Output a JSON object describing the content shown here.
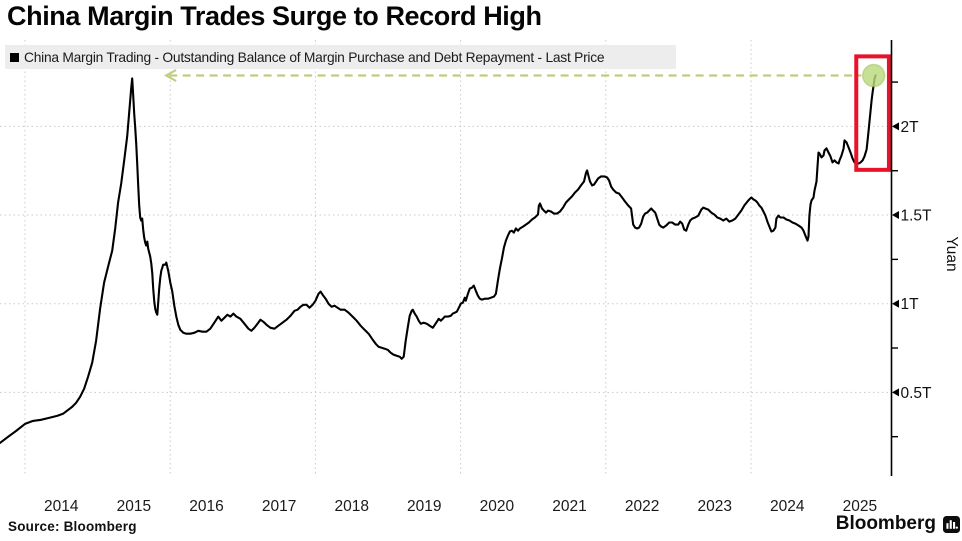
{
  "page": {
    "title": "China Margin Trades Surge to Record High",
    "source": "Source: Bloomberg",
    "brand": "Bloomberg"
  },
  "legend": {
    "label": "China Margin Trading - Outstanding Balance of Margin Purchase and Debt Repayment - Last Price",
    "swatch_color": "#000000",
    "background": "#ededed"
  },
  "chart_data": {
    "type": "line",
    "title": "China Margin Trades Surge to Record High",
    "series_name": "China Margin Trading - Outstanding Balance of Margin Purchase and Debt Repayment - Last Price",
    "xlabel": "",
    "ylabel": "Yuan",
    "unit": "trillion yuan",
    "xlim": [
      2013.65,
      2025.95
    ],
    "ylim": [
      0,
      2.47
    ],
    "grid": "dotted",
    "legend_position": "top-left",
    "x_ticks": [
      2014,
      2015,
      2016,
      2017,
      2018,
      2019,
      2020,
      2021,
      2022,
      2023,
      2024,
      2025
    ],
    "x_tick_labels": [
      "2014",
      "2015",
      "2016",
      "2017",
      "2018",
      "2019",
      "2020",
      "2021",
      "2022",
      "2023",
      "2024",
      "2025"
    ],
    "x_gridline_years": [
      2014,
      2016,
      2018,
      2020,
      2022,
      2024
    ],
    "y_ticks": [
      {
        "value": 0.5,
        "label": "0.5T"
      },
      {
        "value": 1.0,
        "label": "1T"
      },
      {
        "value": 1.5,
        "label": "1.5T"
      },
      {
        "value": 2.0,
        "label": "2T"
      }
    ],
    "y_minor_ticks": [
      0.25,
      0.75,
      1.25,
      1.75,
      2.25
    ],
    "colors": {
      "line": "#000000",
      "grid": "#c9c9c9",
      "axis": "#000000"
    },
    "annotations": {
      "record_level_line": {
        "value": 2.287,
        "from_year": 2015.93,
        "to_year": 2025.52,
        "style": "dashed",
        "color": "#c1ca80",
        "arrowhead": "left"
      },
      "record_marker": {
        "year": 2025.69,
        "value": 2.287,
        "color": "#b9d97f",
        "edge_color": "#9fc360"
      },
      "highlight_box": {
        "year_start": 2025.45,
        "year_end": 2025.9,
        "value_low": 1.755,
        "value_high": 2.395,
        "color": "#e8132a"
      }
    },
    "points": [
      [
        2013.655,
        0.215
      ],
      [
        2013.765,
        0.249
      ],
      [
        2013.876,
        0.282
      ],
      [
        2014.0,
        0.322
      ],
      [
        2014.11,
        0.339
      ],
      [
        2014.221,
        0.345
      ],
      [
        2014.331,
        0.356
      ],
      [
        2014.442,
        0.367
      ],
      [
        2014.524,
        0.379
      ],
      [
        2014.593,
        0.401
      ],
      [
        2014.649,
        0.418
      ],
      [
        2014.704,
        0.441
      ],
      [
        2014.759,
        0.475
      ],
      [
        2014.814,
        0.52
      ],
      [
        2014.869,
        0.588
      ],
      [
        2014.925,
        0.667
      ],
      [
        2014.98,
        0.791
      ],
      [
        2015.035,
        0.972
      ],
      [
        2015.09,
        1.119
      ],
      [
        2015.145,
        1.209
      ],
      [
        2015.201,
        1.299
      ],
      [
        2015.242,
        1.424
      ],
      [
        2015.283,
        1.571
      ],
      [
        2015.325,
        1.678
      ],
      [
        2015.366,
        1.808
      ],
      [
        2015.408,
        1.944
      ],
      [
        2015.435,
        2.079
      ],
      [
        2015.463,
        2.215
      ],
      [
        2015.477,
        2.271
      ],
      [
        2015.49,
        2.175
      ],
      [
        2015.504,
        2.073
      ],
      [
        2015.518,
        1.994
      ],
      [
        2015.532,
        1.904
      ],
      [
        2015.546,
        1.791
      ],
      [
        2015.559,
        1.667
      ],
      [
        2015.573,
        1.554
      ],
      [
        2015.587,
        1.486
      ],
      [
        2015.601,
        1.469
      ],
      [
        2015.615,
        1.48
      ],
      [
        2015.628,
        1.418
      ],
      [
        2015.642,
        1.373
      ],
      [
        2015.656,
        1.345
      ],
      [
        2015.67,
        1.328
      ],
      [
        2015.684,
        1.35
      ],
      [
        2015.697,
        1.311
      ],
      [
        2015.711,
        1.288
      ],
      [
        2015.725,
        1.266
      ],
      [
        2015.739,
        1.226
      ],
      [
        2015.753,
        1.169
      ],
      [
        2015.766,
        1.085
      ],
      [
        2015.78,
        1.017
      ],
      [
        2015.794,
        0.972
      ],
      [
        2015.808,
        0.949
      ],
      [
        2015.822,
        0.938
      ],
      [
        2015.835,
        1.006
      ],
      [
        2015.849,
        1.085
      ],
      [
        2015.863,
        1.147
      ],
      [
        2015.877,
        1.186
      ],
      [
        2015.891,
        1.203
      ],
      [
        2015.904,
        1.22
      ],
      [
        2015.932,
        1.22
      ],
      [
        2015.946,
        1.232
      ],
      [
        2015.973,
        1.186
      ],
      [
        2016.001,
        1.119
      ],
      [
        2016.029,
        1.068
      ],
      [
        2016.056,
        0.989
      ],
      [
        2016.084,
        0.927
      ],
      [
        2016.111,
        0.881
      ],
      [
        2016.139,
        0.853
      ],
      [
        2016.18,
        0.836
      ],
      [
        2016.222,
        0.831
      ],
      [
        2016.277,
        0.831
      ],
      [
        2016.332,
        0.836
      ],
      [
        2016.387,
        0.847
      ],
      [
        2016.443,
        0.842
      ],
      [
        2016.498,
        0.842
      ],
      [
        2016.553,
        0.859
      ],
      [
        2016.608,
        0.893
      ],
      [
        2016.663,
        0.927
      ],
      [
        2016.705,
        0.904
      ],
      [
        2016.746,
        0.921
      ],
      [
        2016.788,
        0.938
      ],
      [
        2016.829,
        0.927
      ],
      [
        2016.87,
        0.944
      ],
      [
        2016.912,
        0.927
      ],
      [
        2016.967,
        0.915
      ],
      [
        2017.022,
        0.887
      ],
      [
        2017.077,
        0.859
      ],
      [
        2017.119,
        0.847
      ],
      [
        2017.16,
        0.864
      ],
      [
        2017.202,
        0.887
      ],
      [
        2017.243,
        0.91
      ],
      [
        2017.284,
        0.898
      ],
      [
        2017.326,
        0.881
      ],
      [
        2017.381,
        0.864
      ],
      [
        2017.436,
        0.859
      ],
      [
        2017.491,
        0.876
      ],
      [
        2017.547,
        0.893
      ],
      [
        2017.602,
        0.91
      ],
      [
        2017.657,
        0.932
      ],
      [
        2017.712,
        0.96
      ],
      [
        2017.754,
        0.966
      ],
      [
        2017.795,
        0.983
      ],
      [
        2017.836,
        0.994
      ],
      [
        2017.878,
        0.994
      ],
      [
        2017.919,
        0.977
      ],
      [
        2017.961,
        0.994
      ],
      [
        2018.002,
        1.017
      ],
      [
        2018.043,
        1.056
      ],
      [
        2018.071,
        1.068
      ],
      [
        2018.099,
        1.051
      ],
      [
        2018.14,
        1.028
      ],
      [
        2018.181,
        1.0
      ],
      [
        2018.223,
        0.983
      ],
      [
        2018.264,
        0.989
      ],
      [
        2018.306,
        0.977
      ],
      [
        2018.347,
        0.966
      ],
      [
        2018.402,
        0.966
      ],
      [
        2018.457,
        0.949
      ],
      [
        2018.513,
        0.927
      ],
      [
        2018.568,
        0.904
      ],
      [
        2018.623,
        0.876
      ],
      [
        2018.678,
        0.853
      ],
      [
        2018.733,
        0.831
      ],
      [
        2018.789,
        0.797
      ],
      [
        2018.83,
        0.774
      ],
      [
        2018.871,
        0.757
      ],
      [
        2018.913,
        0.751
      ],
      [
        2018.954,
        0.746
      ],
      [
        2018.996,
        0.74
      ],
      [
        2019.037,
        0.723
      ],
      [
        2019.078,
        0.712
      ],
      [
        2019.12,
        0.706
      ],
      [
        2019.161,
        0.701
      ],
      [
        2019.189,
        0.689
      ],
      [
        2019.216,
        0.701
      ],
      [
        2019.244,
        0.791
      ],
      [
        2019.272,
        0.864
      ],
      [
        2019.299,
        0.932
      ],
      [
        2019.327,
        0.96
      ],
      [
        2019.341,
        0.966
      ],
      [
        2019.368,
        0.944
      ],
      [
        2019.396,
        0.927
      ],
      [
        2019.423,
        0.904
      ],
      [
        2019.451,
        0.887
      ],
      [
        2019.492,
        0.893
      ],
      [
        2019.534,
        0.887
      ],
      [
        2019.575,
        0.876
      ],
      [
        2019.617,
        0.864
      ],
      [
        2019.644,
        0.881
      ],
      [
        2019.672,
        0.898
      ],
      [
        2019.699,
        0.915
      ],
      [
        2019.727,
        0.904
      ],
      [
        2019.755,
        0.915
      ],
      [
        2019.782,
        0.927
      ],
      [
        2019.824,
        0.927
      ],
      [
        2019.865,
        0.932
      ],
      [
        2019.893,
        0.944
      ],
      [
        2019.92,
        0.949
      ],
      [
        2019.948,
        0.955
      ],
      [
        2019.975,
        0.977
      ],
      [
        2020.003,
        1.0
      ],
      [
        2020.031,
        1.006
      ],
      [
        2020.058,
        1.034
      ],
      [
        2020.072,
        1.017
      ],
      [
        2020.1,
        1.056
      ],
      [
        2020.127,
        1.085
      ],
      [
        2020.155,
        1.09
      ],
      [
        2020.182,
        1.102
      ],
      [
        2020.21,
        1.073
      ],
      [
        2020.238,
        1.045
      ],
      [
        2020.265,
        1.028
      ],
      [
        2020.293,
        1.023
      ],
      [
        2020.334,
        1.028
      ],
      [
        2020.376,
        1.028
      ],
      [
        2020.417,
        1.034
      ],
      [
        2020.458,
        1.04
      ],
      [
        2020.486,
        1.056
      ],
      [
        2020.514,
        1.13
      ],
      [
        2020.541,
        1.198
      ],
      [
        2020.569,
        1.254
      ],
      [
        2020.596,
        1.316
      ],
      [
        2020.624,
        1.356
      ],
      [
        2020.652,
        1.384
      ],
      [
        2020.679,
        1.407
      ],
      [
        2020.707,
        1.412
      ],
      [
        2020.734,
        1.401
      ],
      [
        2020.762,
        1.424
      ],
      [
        2020.79,
        1.412
      ],
      [
        2020.817,
        1.424
      ],
      [
        2020.859,
        1.435
      ],
      [
        2020.9,
        1.446
      ],
      [
        2020.941,
        1.458
      ],
      [
        2020.983,
        1.475
      ],
      [
        2021.024,
        1.486
      ],
      [
        2021.066,
        1.503
      ],
      [
        2021.079,
        1.554
      ],
      [
        2021.093,
        1.565
      ],
      [
        2021.121,
        1.537
      ],
      [
        2021.148,
        1.525
      ],
      [
        2021.176,
        1.514
      ],
      [
        2021.204,
        1.525
      ],
      [
        2021.245,
        1.52
      ],
      [
        2021.286,
        1.508
      ],
      [
        2021.328,
        1.508
      ],
      [
        2021.369,
        1.52
      ],
      [
        2021.411,
        1.542
      ],
      [
        2021.452,
        1.571
      ],
      [
        2021.493,
        1.588
      ],
      [
        2021.535,
        1.605
      ],
      [
        2021.576,
        1.627
      ],
      [
        2021.618,
        1.644
      ],
      [
        2021.659,
        1.667
      ],
      [
        2021.7,
        1.689
      ],
      [
        2021.728,
        1.74
      ],
      [
        2021.742,
        1.751
      ],
      [
        2021.756,
        1.729
      ],
      [
        2021.783,
        1.689
      ],
      [
        2021.811,
        1.667
      ],
      [
        2021.838,
        1.672
      ],
      [
        2021.866,
        1.689
      ],
      [
        2021.894,
        1.706
      ],
      [
        2021.935,
        1.718
      ],
      [
        2021.976,
        1.718
      ],
      [
        2022.018,
        1.712
      ],
      [
        2022.045,
        1.695
      ],
      [
        2022.073,
        1.661
      ],
      [
        2022.101,
        1.644
      ],
      [
        2022.142,
        1.627
      ],
      [
        2022.183,
        1.621
      ],
      [
        2022.225,
        1.599
      ],
      [
        2022.266,
        1.576
      ],
      [
        2022.308,
        1.554
      ],
      [
        2022.349,
        1.537
      ],
      [
        2022.377,
        1.446
      ],
      [
        2022.404,
        1.429
      ],
      [
        2022.432,
        1.424
      ],
      [
        2022.459,
        1.429
      ],
      [
        2022.487,
        1.452
      ],
      [
        2022.515,
        1.492
      ],
      [
        2022.542,
        1.508
      ],
      [
        2022.57,
        1.514
      ],
      [
        2022.597,
        1.525
      ],
      [
        2022.625,
        1.537
      ],
      [
        2022.653,
        1.525
      ],
      [
        2022.68,
        1.514
      ],
      [
        2022.708,
        1.48
      ],
      [
        2022.735,
        1.446
      ],
      [
        2022.763,
        1.435
      ],
      [
        2022.791,
        1.429
      ],
      [
        2022.832,
        1.441
      ],
      [
        2022.873,
        1.458
      ],
      [
        2022.915,
        1.458
      ],
      [
        2022.956,
        1.446
      ],
      [
        2022.998,
        1.446
      ],
      [
        2023.025,
        1.463
      ],
      [
        2023.053,
        1.452
      ],
      [
        2023.08,
        1.418
      ],
      [
        2023.108,
        1.412
      ],
      [
        2023.136,
        1.446
      ],
      [
        2023.163,
        1.469
      ],
      [
        2023.191,
        1.48
      ],
      [
        2023.232,
        1.486
      ],
      [
        2023.274,
        1.497
      ],
      [
        2023.315,
        1.531
      ],
      [
        2023.343,
        1.542
      ],
      [
        2023.37,
        1.537
      ],
      [
        2023.412,
        1.531
      ],
      [
        2023.453,
        1.514
      ],
      [
        2023.494,
        1.503
      ],
      [
        2023.536,
        1.486
      ],
      [
        2023.577,
        1.48
      ],
      [
        2023.619,
        1.469
      ],
      [
        2023.66,
        1.48
      ],
      [
        2023.701,
        1.463
      ],
      [
        2023.743,
        1.469
      ],
      [
        2023.784,
        1.48
      ],
      [
        2023.826,
        1.503
      ],
      [
        2023.867,
        1.525
      ],
      [
        2023.908,
        1.554
      ],
      [
        2023.95,
        1.576
      ],
      [
        2023.977,
        1.588
      ],
      [
        2024.005,
        1.599
      ],
      [
        2024.033,
        1.588
      ],
      [
        2024.06,
        1.582
      ],
      [
        2024.088,
        1.571
      ],
      [
        2024.115,
        1.554
      ],
      [
        2024.143,
        1.542
      ],
      [
        2024.171,
        1.52
      ],
      [
        2024.198,
        1.497
      ],
      [
        2024.226,
        1.463
      ],
      [
        2024.253,
        1.435
      ],
      [
        2024.281,
        1.407
      ],
      [
        2024.309,
        1.412
      ],
      [
        2024.336,
        1.429
      ],
      [
        2024.35,
        1.48
      ],
      [
        2024.378,
        1.497
      ],
      [
        2024.405,
        1.486
      ],
      [
        2024.447,
        1.486
      ],
      [
        2024.488,
        1.475
      ],
      [
        2024.529,
        1.469
      ],
      [
        2024.571,
        1.458
      ],
      [
        2024.612,
        1.452
      ],
      [
        2024.654,
        1.441
      ],
      [
        2024.695,
        1.429
      ],
      [
        2024.723,
        1.412
      ],
      [
        2024.75,
        1.384
      ],
      [
        2024.778,
        1.356
      ],
      [
        2024.792,
        1.379
      ],
      [
        2024.805,
        1.497
      ],
      [
        2024.819,
        1.559
      ],
      [
        2024.833,
        1.582
      ],
      [
        2024.861,
        1.599
      ],
      [
        2024.874,
        1.638
      ],
      [
        2024.902,
        1.689
      ],
      [
        2024.916,
        1.774
      ],
      [
        2024.93,
        1.853
      ],
      [
        2024.943,
        1.847
      ],
      [
        2024.971,
        1.825
      ],
      [
        2024.999,
        1.836
      ],
      [
        2025.012,
        1.864
      ],
      [
        2025.04,
        1.876
      ],
      [
        2025.068,
        1.853
      ],
      [
        2025.095,
        1.831
      ],
      [
        2025.123,
        1.797
      ],
      [
        2025.15,
        1.808
      ],
      [
        2025.178,
        1.797
      ],
      [
        2025.206,
        1.791
      ],
      [
        2025.219,
        1.808
      ],
      [
        2025.247,
        1.836
      ],
      [
        2025.275,
        1.876
      ],
      [
        2025.288,
        1.921
      ],
      [
        2025.316,
        1.91
      ],
      [
        2025.344,
        1.881
      ],
      [
        2025.371,
        1.853
      ],
      [
        2025.399,
        1.819
      ],
      [
        2025.426,
        1.797
      ],
      [
        2025.454,
        1.791
      ],
      [
        2025.482,
        1.791
      ],
      [
        2025.509,
        1.797
      ],
      [
        2025.537,
        1.808
      ],
      [
        2025.564,
        1.831
      ],
      [
        2025.592,
        1.87
      ],
      [
        2025.606,
        1.921
      ],
      [
        2025.62,
        1.977
      ],
      [
        2025.633,
        2.034
      ],
      [
        2025.647,
        2.09
      ],
      [
        2025.661,
        2.147
      ],
      [
        2025.675,
        2.192
      ],
      [
        2025.689,
        2.232
      ],
      [
        2025.702,
        2.271
      ],
      [
        2025.716,
        2.288
      ]
    ]
  }
}
